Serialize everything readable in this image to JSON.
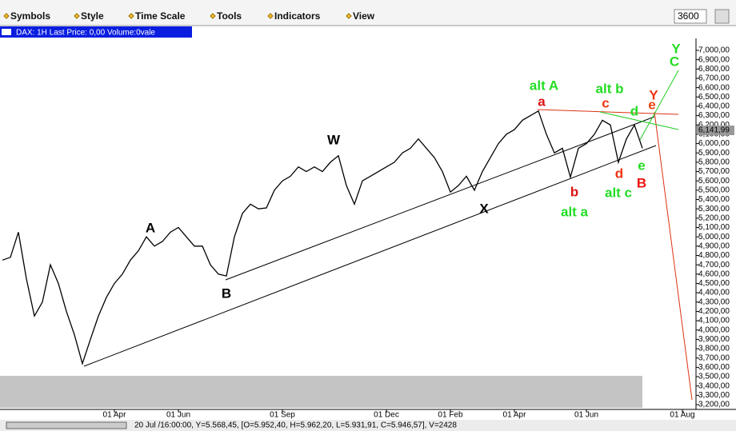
{
  "toolbar": {
    "items": [
      "Symbols",
      "Style",
      "Time Scale",
      "Tools",
      "Indicators",
      "View"
    ],
    "interval": "3600"
  },
  "header": {
    "title": "DAX: 1H Last Price: 0,00 Volume:0vale"
  },
  "status": {
    "text": "20 Jul /16:00:00, Y=5.568,45, [O=5.952,40, H=5.962,20, L=5.931,91, C=5.946,57], V=2428"
  },
  "chart_data": {
    "type": "line",
    "color": "#000000",
    "categories": [
      "",
      null,
      null,
      null,
      null,
      null,
      null,
      null,
      null,
      null,
      null,
      null,
      null,
      null,
      "01 Apr",
      null,
      null,
      null,
      null,
      null,
      null,
      null,
      "01 Jun",
      null,
      null,
      null,
      null,
      null,
      null,
      null,
      null,
      null,
      null,
      null,
      null,
      "01 Sep",
      null,
      null,
      null,
      null,
      null,
      null,
      null,
      null,
      null,
      null,
      null,
      null,
      "01 Dec",
      null,
      null,
      null,
      null,
      null,
      null,
      null,
      "01 Feb",
      null,
      null,
      null,
      null,
      null,
      null,
      null,
      "01 Apr",
      null,
      null,
      null,
      null,
      null,
      null,
      null,
      null,
      "01 Jun",
      null,
      null,
      null,
      null,
      null,
      null,
      null,
      null,
      null,
      null,
      null,
      "01 Aug"
    ],
    "values": [
      4750,
      4780,
      5050,
      4550,
      4150,
      4300,
      4700,
      4500,
      4200,
      3950,
      3640,
      3900,
      4150,
      4350,
      4500,
      4600,
      4750,
      4850,
      5000,
      4900,
      4950,
      5050,
      5100,
      5000,
      4900,
      4900,
      4700,
      4600,
      4580,
      5000,
      5250,
      5350,
      5300,
      5310,
      5500,
      5600,
      5650,
      5750,
      5700,
      5750,
      5700,
      5800,
      5870,
      5550,
      5350,
      5600,
      5650,
      5700,
      5750,
      5800,
      5900,
      5950,
      6050,
      5950,
      5850,
      5700,
      5480,
      5550,
      5650,
      5500,
      5700,
      5850,
      6000,
      6100,
      6150,
      6250,
      6300,
      6350,
      6100,
      5900,
      5950,
      5640,
      5950,
      6000,
      6100,
      6250,
      6200,
      5800,
      6050,
      6200,
      5950,
      null,
      null,
      null,
      null,
      null
    ],
    "ylim": [
      3200,
      7000
    ],
    "yticks": [
      {
        "value": 7000,
        "label": "7,000,00"
      },
      {
        "value": 6900,
        "label": "6,900,00"
      },
      {
        "value": 6800,
        "label": "6,800,00"
      },
      {
        "value": 6700,
        "label": "6,700,00"
      },
      {
        "value": 6600,
        "label": "6,600,00"
      },
      {
        "value": 6500,
        "label": "6,500,00"
      },
      {
        "value": 6400,
        "label": "6,400,00"
      },
      {
        "value": 6300,
        "label": "6,300,00"
      },
      {
        "value": 6200,
        "label": "6,200,00"
      },
      {
        "value": 6100,
        "label": "6,100,00"
      },
      {
        "value": 6000,
        "label": "6,000,00"
      },
      {
        "value": 5900,
        "label": "5,900,00"
      },
      {
        "value": 5800,
        "label": "5,800,00"
      },
      {
        "value": 5700,
        "label": "5,700,00"
      },
      {
        "value": 5600,
        "label": "5,600,00"
      },
      {
        "value": 5500,
        "label": "5,500,00"
      },
      {
        "value": 5400,
        "label": "5,400,00"
      },
      {
        "value": 5300,
        "label": "5,300,00"
      },
      {
        "value": 5200,
        "label": "5,200,00"
      },
      {
        "value": 5100,
        "label": "5,100,00"
      },
      {
        "value": 5000,
        "label": "5,000,00"
      },
      {
        "value": 4900,
        "label": "4,900,00"
      },
      {
        "value": 4800,
        "label": "4,800,00"
      },
      {
        "value": 4700,
        "label": "4,700,00"
      },
      {
        "value": 4600,
        "label": "4,600,00"
      },
      {
        "value": 4500,
        "label": "4,500,00"
      },
      {
        "value": 4400,
        "label": "4,400,00"
      },
      {
        "value": 4300,
        "label": "4,300,00"
      },
      {
        "value": 4200,
        "label": "4,200,00"
      },
      {
        "value": 4100,
        "label": "4,100,00"
      },
      {
        "value": 4000,
        "label": "4,000,00"
      },
      {
        "value": 3900,
        "label": "3,900,00"
      },
      {
        "value": 3800,
        "label": "3,800,00"
      },
      {
        "value": 3700,
        "label": "3,700,00"
      },
      {
        "value": 3600,
        "label": "3,600,00"
      },
      {
        "value": 3500,
        "label": "3,500,00"
      },
      {
        "value": 3400,
        "label": "3,400,00"
      },
      {
        "value": 3300,
        "label": "3,300,00"
      },
      {
        "value": 3200,
        "label": "3,200,00"
      }
    ],
    "price_tag": {
      "value": 6141.99,
      "label": "6,141,99"
    },
    "annotations": [
      {
        "text": "alt A",
        "color": "#22dd22"
      },
      {
        "text": "a",
        "color": "#dd1111"
      },
      {
        "text": "alt b",
        "color": "#22dd22"
      },
      {
        "text": "c",
        "color": "#ee3311"
      },
      {
        "text": "d",
        "color": "#22dd22"
      },
      {
        "text": "e",
        "color": "#ee4411"
      },
      {
        "text": "Y",
        "color": "#ee3311"
      },
      {
        "text": "Y",
        "color": "#22dd22"
      },
      {
        "text": "C",
        "color": "#22dd22"
      },
      {
        "text": "W",
        "color": "#000000"
      },
      {
        "text": "A",
        "color": "#000000"
      },
      {
        "text": "B",
        "color": "#000000"
      },
      {
        "text": "X",
        "color": "#000000"
      },
      {
        "text": "b",
        "color": "#dd1111"
      },
      {
        "text": "d",
        "color": "#ee3311"
      },
      {
        "text": "e",
        "color": "#22dd22"
      },
      {
        "text": "alt c",
        "color": "#22dd22"
      },
      {
        "text": "B",
        "color": "#ee1111"
      },
      {
        "text": "alt a",
        "color": "#22dd22"
      }
    ]
  }
}
